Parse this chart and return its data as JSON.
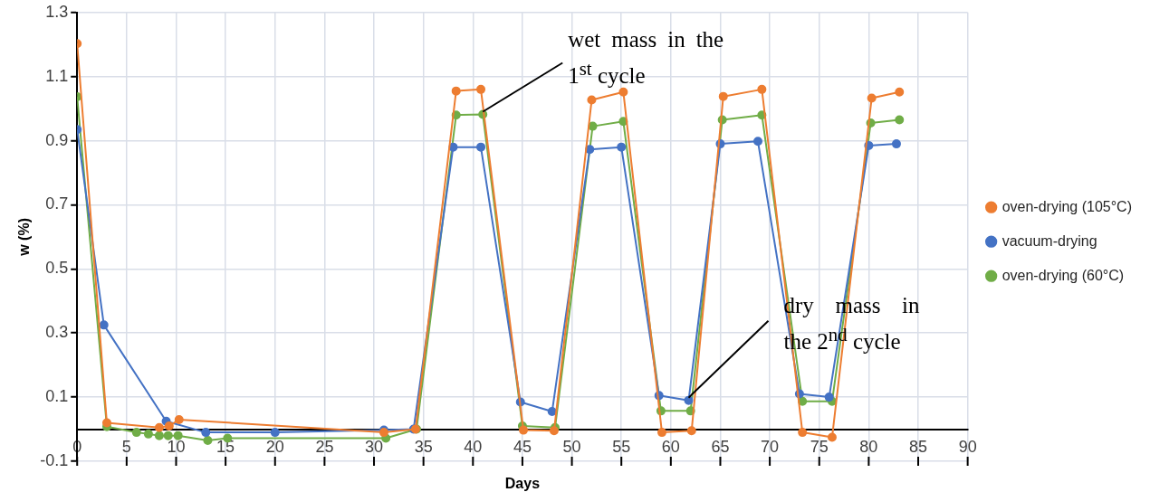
{
  "chart_data": {
    "type": "line",
    "xlabel": "Days",
    "ylabel": "w (%)",
    "xlim": [
      0,
      90
    ],
    "xticks": [
      0,
      5,
      10,
      15,
      20,
      25,
      30,
      35,
      40,
      45,
      50,
      55,
      60,
      65,
      70,
      75,
      80,
      85,
      90
    ],
    "ylim": [
      -0.1,
      1.3
    ],
    "yticks": [
      -0.1,
      0.1,
      0.3,
      0.5,
      0.7,
      0.9,
      1.1,
      1.3
    ],
    "grid": true,
    "legend": "right",
    "marker": "circle",
    "line_style": "solid",
    "series": [
      {
        "name": "oven-drying (105°C)",
        "color": "#ed7d31",
        "x": [
          0,
          3,
          8.3,
          9.3,
          10.3,
          31,
          34.2,
          38.3,
          40.8,
          45.1,
          48.2,
          52,
          55.2,
          59.1,
          62.1,
          65.3,
          69.2,
          73.3,
          76.3,
          80.3,
          83.1
        ],
        "values": [
          1.203,
          0.02,
          0.005,
          0.01,
          0.03,
          -0.01,
          0,
          1.055,
          1.06,
          -0.003,
          -0.005,
          1.027,
          1.052,
          -0.01,
          -0.005,
          1.038,
          1.06,
          -0.01,
          -0.025,
          1.033,
          1.052
        ]
      },
      {
        "name": "vacuum-drying",
        "color": "#4472c4",
        "x": [
          0,
          2.7,
          9,
          13,
          20,
          31,
          34,
          38,
          40.8,
          44.8,
          48,
          51.8,
          55,
          58.8,
          61.8,
          65,
          68.8,
          73,
          76,
          80,
          82.8
        ],
        "values": [
          0.935,
          0.325,
          0.025,
          -0.01,
          -0.01,
          -0.003,
          0,
          0.88,
          0.88,
          0.085,
          0.055,
          0.873,
          0.88,
          0.105,
          0.09,
          0.89,
          0.898,
          0.11,
          0.1,
          0.885,
          0.89
        ]
      },
      {
        "name": "oven-drying (60°C)",
        "color": "#70ad47",
        "x": [
          0,
          3,
          6,
          7.2,
          8.3,
          9.2,
          10.2,
          13.2,
          15.2,
          31.2,
          34.3,
          38.3,
          41,
          45,
          48.3,
          52.1,
          55.2,
          59,
          62,
          65.2,
          69.2,
          73.3,
          76.3,
          80.2,
          83.1
        ],
        "values": [
          1.037,
          0.008,
          -0.01,
          -0.015,
          -0.02,
          -0.02,
          -0.02,
          -0.035,
          -0.028,
          -0.028,
          0,
          0.98,
          0.982,
          0.01,
          0.005,
          0.945,
          0.96,
          0.057,
          0.057,
          0.965,
          0.98,
          0.087,
          0.087,
          0.955,
          0.965
        ]
      }
    ],
    "annotations": [
      {
        "text": "wet mass in the 1$^{st}$ cycle",
        "x": 41,
        "y": 0.982
      },
      {
        "text": "dry mass in the 2$^{nd}$ cycle",
        "x": 61.8,
        "y": 0.09
      }
    ]
  }
}
